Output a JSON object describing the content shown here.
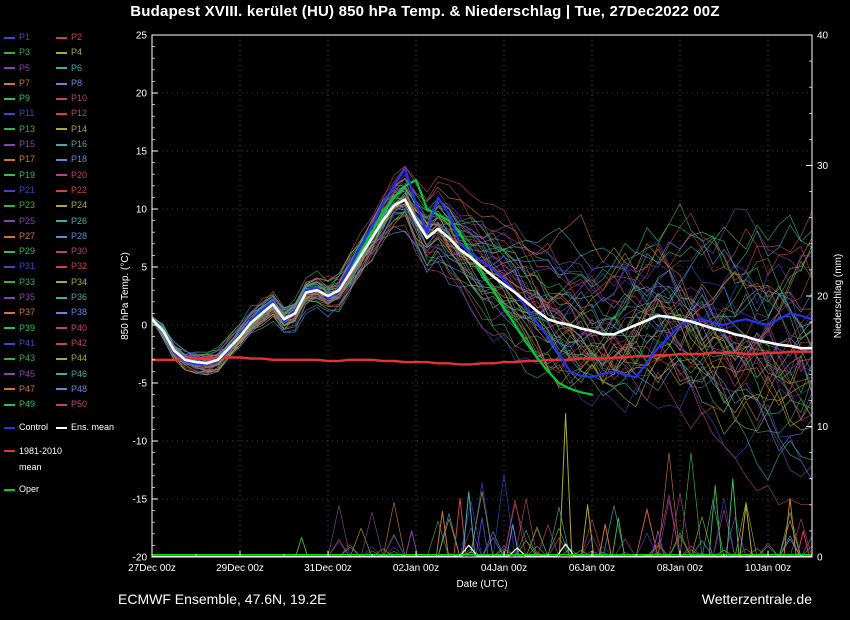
{
  "title": "Budapest XVIII. kerület  (HU)  850 hPa Temp. & Niederschlag | Tue, 27Dec2022 00Z",
  "footer": {
    "left": "ECMWF Ensemble, 47.6N, 19.2E",
    "right": "Wetterzentrale.de"
  },
  "legend": {
    "member_labels": [
      "P1",
      "P2",
      "P3",
      "P4",
      "P5",
      "P6",
      "P7",
      "P8",
      "P9",
      "P10",
      "P11",
      "P12",
      "P13",
      "P14",
      "P15",
      "P16",
      "P17",
      "P18",
      "P19",
      "P20",
      "P21",
      "P22",
      "P23",
      "P24",
      "P25",
      "P26",
      "P27",
      "P28",
      "P29",
      "P30",
      "P31",
      "P32",
      "P33",
      "P34",
      "P35",
      "P36",
      "P37",
      "P38",
      "P39",
      "P40",
      "P41",
      "P42",
      "P43",
      "P44",
      "P45",
      "P46",
      "P47",
      "P48",
      "P49",
      "P50"
    ],
    "control_label": "Control",
    "ens_mean_label": "Ens. mean",
    "climate_label_line1": "1981-2010",
    "climate_label_line2": "mean",
    "oper_label": "Oper",
    "palette": [
      "#4444cc",
      "#cc4444",
      "#44aa44",
      "#aaaa33",
      "#8844aa",
      "#44aaaa",
      "#cc7733",
      "#6688dd",
      "#33bb66",
      "#bb4477"
    ],
    "colors": {
      "control": "#2233ee",
      "ens_mean": "#ffffff",
      "climate": "#e63232",
      "oper": "#00cc33",
      "precip_baseline": "#00dd00"
    }
  },
  "chart_data": {
    "type": "line",
    "title": "Budapest XVIII. kerület (HU) 850 hPa Temp. & Niederschlag | Tue, 27Dec2022 00Z",
    "xlabel": "Date (UTC)",
    "ylabel_left": "850 hPa Temp. (°C)",
    "ylabel_right": "Niederschlag (mm)",
    "x_start": 0,
    "x_end": 15,
    "x_step_days": 0.25,
    "x_tick_days": [
      0,
      2,
      4,
      6,
      8,
      10,
      12,
      14
    ],
    "x_tick_labels": [
      "27Dec 00z",
      "29Dec 00z",
      "31Dec 00z",
      "02Jan 00z",
      "04Jan 00z",
      "06Jan 00z",
      "08Jan 00z",
      "10Jan 00z"
    ],
    "ylim_left": [
      -20,
      25
    ],
    "yticks_left": [
      25,
      20,
      15,
      10,
      5,
      0,
      -5,
      -10,
      -15,
      -20
    ],
    "ylim_right": [
      0,
      40
    ],
    "yticks_right": [
      40,
      30,
      20,
      10,
      0
    ],
    "grid": true,
    "legend_position": "left",
    "series": {
      "ens_mean": [
        0.5,
        -0.5,
        -2.2,
        -3.0,
        -3.2,
        -3.3,
        -3.0,
        -2.0,
        -1.0,
        0.2,
        1.0,
        1.8,
        0.5,
        1.0,
        2.8,
        3.0,
        2.5,
        3.0,
        4.5,
        6.0,
        7.5,
        9.0,
        10.3,
        10.8,
        9.0,
        7.5,
        8.3,
        7.5,
        6.5,
        5.8,
        5.0,
        4.2,
        3.5,
        2.8,
        2.0,
        1.2,
        0.5,
        0.2,
        0.0,
        -0.3,
        -0.5,
        -0.8,
        -0.8,
        -0.4,
        0.0,
        0.4,
        0.8,
        0.7,
        0.5,
        0.3,
        0.0,
        -0.3,
        -0.5,
        -0.8,
        -1.0,
        -1.3,
        -1.5,
        -1.7,
        -1.8,
        -2.0,
        -2.0
      ],
      "control": [
        0.5,
        -0.6,
        -2.4,
        -3.1,
        -3.4,
        -3.4,
        -3.1,
        -2.2,
        -0.8,
        0.4,
        1.3,
        2.0,
        0.3,
        1.2,
        3.0,
        3.2,
        2.3,
        3.2,
        5.0,
        6.8,
        8.5,
        10.5,
        12.0,
        13.5,
        10.5,
        8.0,
        11.0,
        9.5,
        7.0,
        6.2,
        5.5,
        4.8,
        4.0,
        2.8,
        1.5,
        0.2,
        -1.0,
        -2.5,
        -4.0,
        -4.4,
        -4.5,
        -4.2,
        -4.0,
        -4.3,
        -4.5,
        -3.2,
        -2.0,
        -1.0,
        0.0,
        0.4,
        0.5,
        0.2,
        0.0,
        0.3,
        0.5,
        0.2,
        0.0,
        0.5,
        1.0,
        0.8,
        0.5
      ],
      "oper": [
        0.4,
        -0.6,
        -2.3,
        -3.1,
        -3.3,
        -3.4,
        -3.1,
        -2.1,
        -0.9,
        0.3,
        1.1,
        1.9,
        0.4,
        1.1,
        2.9,
        3.1,
        2.4,
        3.1,
        4.8,
        6.4,
        8.0,
        9.8,
        11.0,
        12.0,
        12.5,
        10.0,
        9.5,
        9.0,
        8.0,
        6.0,
        4.5,
        3.0,
        1.5,
        0.0,
        -1.5,
        -2.8,
        -4.0,
        -5.0,
        -5.5,
        -5.8,
        -6.0
      ],
      "climate_mean": [
        -3.0,
        -3.0,
        -3.0,
        -2.9,
        -2.9,
        -2.9,
        -2.8,
        -2.8,
        -2.8,
        -2.9,
        -2.9,
        -3.0,
        -3.0,
        -3.0,
        -3.0,
        -3.0,
        -3.1,
        -3.1,
        -3.0,
        -3.0,
        -3.0,
        -3.1,
        -3.1,
        -3.2,
        -3.2,
        -3.2,
        -3.3,
        -3.3,
        -3.4,
        -3.4,
        -3.3,
        -3.3,
        -3.2,
        -3.2,
        -3.1,
        -3.1,
        -3.0,
        -3.0,
        -3.0,
        -2.9,
        -2.9,
        -2.9,
        -2.8,
        -2.8,
        -2.7,
        -2.7,
        -2.6,
        -2.6,
        -2.5,
        -2.5,
        -2.5,
        -2.4,
        -2.4,
        -2.4,
        -2.5,
        -2.5,
        -2.4,
        -2.4,
        -2.3,
        -2.3,
        -2.3
      ]
    },
    "ensemble": {
      "count": 50,
      "note": "50 perturbed members fanning out after ~day 4; end-of-range spread roughly -13 to +8 °C"
    },
    "precip_events": [
      {
        "day": 3.4,
        "mm": 1.5,
        "color": "#44aa44"
      },
      {
        "day": 5.9,
        "mm": 2.0,
        "color": "#8844aa"
      },
      {
        "day": 6.6,
        "mm": 3.5,
        "color": "#cc7733"
      },
      {
        "day": 7.0,
        "mm": 4.5,
        "color": "#cc4444"
      },
      {
        "day": 7.2,
        "mm": 5.0,
        "color": "#44aaaa"
      },
      {
        "day": 7.5,
        "mm": 3.0,
        "color": "#4444cc"
      },
      {
        "day": 8.2,
        "mm": 2.5,
        "color": "#6688dd"
      },
      {
        "day": 9.4,
        "mm": 11.0,
        "color": "#aaaa33"
      },
      {
        "day": 9.9,
        "mm": 4.0,
        "color": "#aaaa33"
      },
      {
        "day": 10.3,
        "mm": 2.5,
        "color": "#cc7733"
      },
      {
        "day": 10.6,
        "mm": 3.0,
        "color": "#44aa44"
      },
      {
        "day": 11.5,
        "mm": 2.0,
        "color": "#8844aa"
      },
      {
        "day": 12.8,
        "mm": 5.5,
        "color": "#44aa44"
      },
      {
        "day": 13.2,
        "mm": 6.0,
        "color": "#33bb66"
      },
      {
        "day": 13.5,
        "mm": 4.0,
        "color": "#aaaa33"
      },
      {
        "day": 14.5,
        "mm": 4.5,
        "color": "#cc7733"
      },
      {
        "day": 14.8,
        "mm": 2.0,
        "color": "#cc4444"
      }
    ],
    "precip_mean_bumps": [
      {
        "day": 7.2,
        "mm": 0.9
      },
      {
        "day": 8.3,
        "mm": 0.7
      },
      {
        "day": 9.4,
        "mm": 1.0
      }
    ]
  }
}
